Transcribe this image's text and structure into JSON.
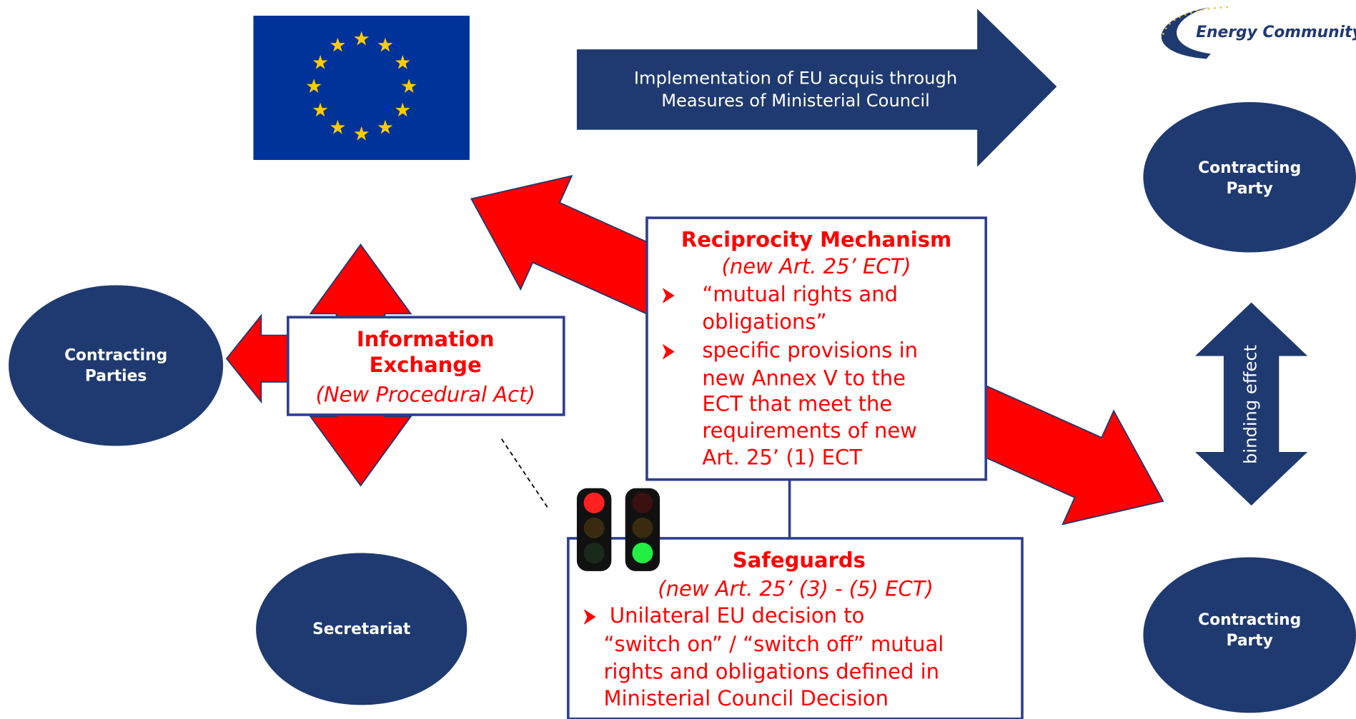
{
  "logo": {
    "text": "Energy Community"
  },
  "top_arrow": {
    "lines": [
      "Implementation of EU acquis through",
      "Measures of Ministerial Council"
    ]
  },
  "nodes": [
    {
      "label": [
        "Contracting",
        "Party"
      ]
    },
    {
      "label": [
        "Contracting",
        "Parties"
      ]
    },
    {
      "label": [
        "Secretariat"
      ]
    },
    {
      "label": [
        "Contracting",
        "Party"
      ]
    }
  ],
  "information_exchange": {
    "title": [
      "Information",
      "Exchange"
    ],
    "subtitle": "(New Procedural Act)"
  },
  "reciprocity": {
    "title": "Reciprocity Mechanism",
    "subtitle": "(new Art. 25’ ECT)",
    "bullets": [
      [
        "“mutual rights and",
        "obligations”"
      ],
      [
        "specific provisions in",
        "new Annex V to the",
        "ECT that meet the",
        "requirements of new",
        "Art. 25’ (1) ECT"
      ]
    ]
  },
  "safeguards": {
    "title": "Safeguards",
    "subtitle": "(new Art. 25’ (3) - (5) ECT)",
    "bullets": [
      [
        "Unilateral EU decision to",
        "“switch on” / “switch off” mutual",
        "rights and obligations defined in",
        "Ministerial Council Decision"
      ]
    ]
  },
  "binding": {
    "label": "binding effect"
  }
}
